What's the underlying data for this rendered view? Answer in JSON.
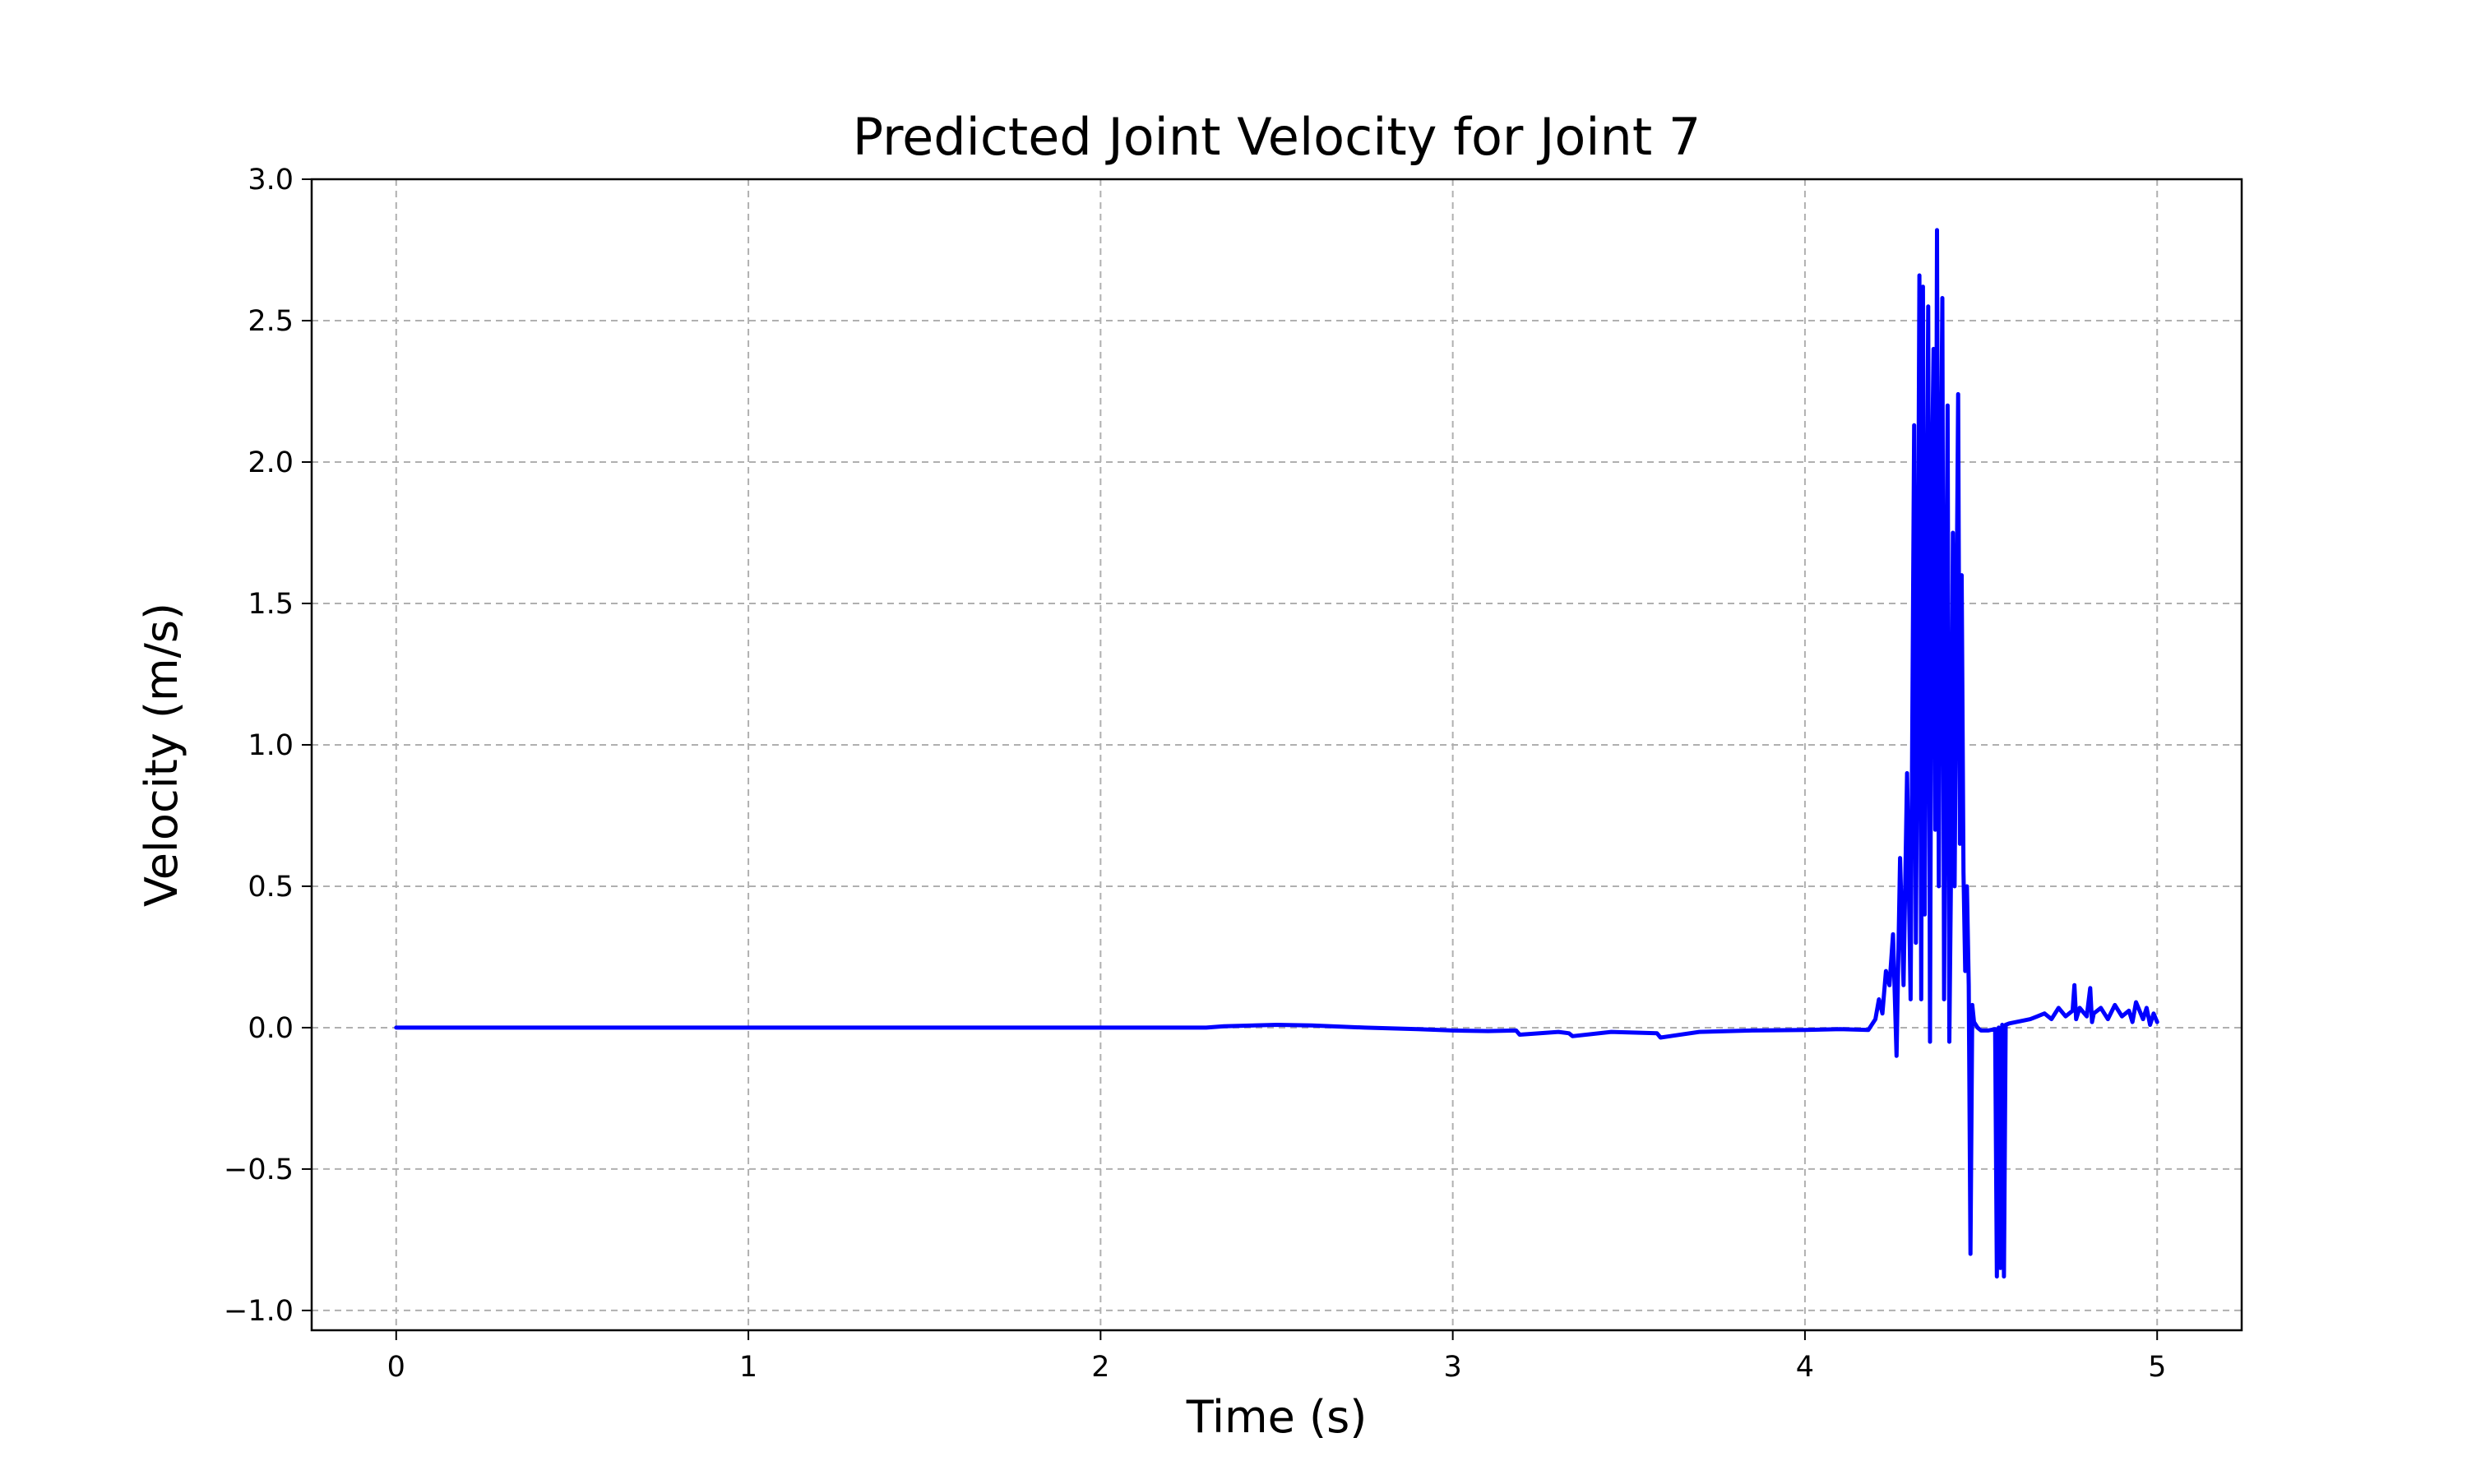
{
  "chart_data": {
    "type": "line",
    "title": "Predicted Joint Velocity for Joint 7",
    "xlabel": "Time (s)",
    "ylabel": "Velocity (m/s)",
    "xlim": [
      -0.24,
      5.24
    ],
    "ylim": [
      -1.07,
      3.0
    ],
    "xticks": [
      0,
      1,
      2,
      3,
      4,
      5
    ],
    "xtick_labels": [
      "0",
      "1",
      "2",
      "3",
      "4",
      "5"
    ],
    "yticks": [
      -1.0,
      -0.5,
      0.0,
      0.5,
      1.0,
      1.5,
      2.0,
      2.5,
      3.0
    ],
    "ytick_labels": [
      "−1.0",
      "−0.5",
      "0.0",
      "0.5",
      "1.0",
      "1.5",
      "2.0",
      "2.5",
      "3.0"
    ],
    "grid": true,
    "legend": "none",
    "series": [
      {
        "color": "#0000ff",
        "x": [
          0.0,
          2.3,
          2.35,
          2.5,
          2.6,
          2.75,
          2.9,
          3.0,
          3.1,
          3.18,
          3.19,
          3.3,
          3.33,
          3.34,
          3.45,
          3.58,
          3.59,
          3.7,
          3.85,
          4.0,
          4.1,
          4.18,
          4.2,
          4.21,
          4.22,
          4.23,
          4.24,
          4.25,
          4.26,
          4.27,
          4.28,
          4.29,
          4.3,
          4.31,
          4.315,
          4.32,
          4.325,
          4.33,
          4.335,
          4.34,
          4.345,
          4.35,
          4.355,
          4.36,
          4.365,
          4.37,
          4.375,
          4.38,
          4.385,
          4.39,
          4.395,
          4.4,
          4.405,
          4.41,
          4.415,
          4.42,
          4.425,
          4.43,
          4.435,
          4.44,
          4.445,
          4.45,
          4.455,
          4.46,
          4.465,
          4.47,
          4.475,
          4.48,
          4.49,
          4.5,
          4.52,
          4.54,
          4.545,
          4.55,
          4.555,
          4.56,
          4.565,
          4.57,
          4.58,
          4.6,
          4.62,
          4.64,
          4.66,
          4.68,
          4.7,
          4.72,
          4.74,
          4.76,
          4.765,
          4.77,
          4.78,
          4.8,
          4.81,
          4.815,
          4.82,
          4.84,
          4.86,
          4.88,
          4.9,
          4.92,
          4.93,
          4.94,
          4.96,
          4.97,
          4.98,
          4.99,
          5.0
        ],
        "y": [
          0.0,
          0.0,
          0.005,
          0.01,
          0.008,
          0.0,
          -0.005,
          -0.01,
          -0.012,
          -0.01,
          -0.025,
          -0.015,
          -0.02,
          -0.03,
          -0.015,
          -0.02,
          -0.035,
          -0.015,
          -0.01,
          -0.008,
          -0.005,
          -0.008,
          0.03,
          0.1,
          0.05,
          0.2,
          0.15,
          0.33,
          -0.1,
          0.6,
          0.15,
          0.9,
          0.1,
          2.13,
          0.3,
          1.3,
          2.66,
          0.1,
          2.62,
          0.4,
          1.5,
          2.55,
          -0.05,
          1.9,
          2.4,
          0.7,
          2.82,
          0.5,
          1.8,
          2.58,
          0.1,
          1.2,
          2.2,
          -0.05,
          0.6,
          1.75,
          0.5,
          1.4,
          2.24,
          0.65,
          1.6,
          0.55,
          0.2,
          0.5,
          0.15,
          -0.8,
          0.08,
          0.02,
          0.0,
          -0.01,
          -0.01,
          -0.005,
          -0.88,
          0.0,
          -0.85,
          0.01,
          -0.88,
          0.01,
          0.015,
          0.02,
          0.025,
          0.03,
          0.04,
          0.05,
          0.03,
          0.07,
          0.04,
          0.06,
          0.15,
          0.03,
          0.07,
          0.04,
          0.14,
          0.02,
          0.05,
          0.07,
          0.03,
          0.08,
          0.04,
          0.06,
          0.02,
          0.09,
          0.03,
          0.07,
          0.01,
          0.05,
          0.02
        ]
      }
    ]
  }
}
